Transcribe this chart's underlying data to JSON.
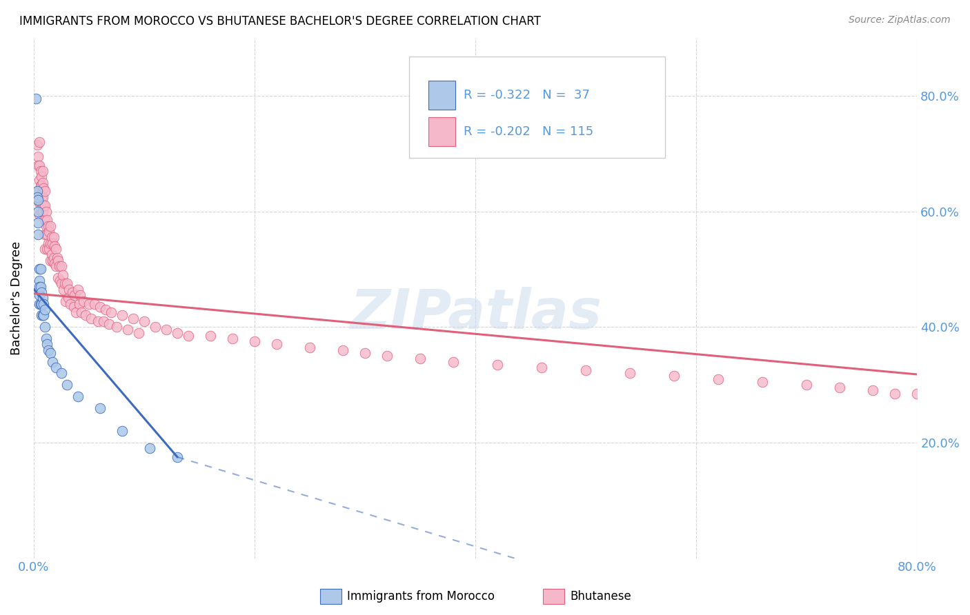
{
  "title": "IMMIGRANTS FROM MOROCCO VS BHUTANESE BACHELOR'S DEGREE CORRELATION CHART",
  "source": "Source: ZipAtlas.com",
  "ylabel": "Bachelor's Degree",
  "xlim": [
    0.0,
    0.8
  ],
  "ylim": [
    0.0,
    0.9
  ],
  "xtick_positions": [
    0.0,
    0.2,
    0.4,
    0.6,
    0.8
  ],
  "ytick_positions": [
    0.2,
    0.4,
    0.6,
    0.8
  ],
  "color_morocco": "#adc8e8",
  "color_bhutanese": "#f5b8cb",
  "line_color_morocco": "#3b6abf",
  "line_color_bhutanese": "#e0607a",
  "watermark": "ZIPatlas",
  "morocco_x": [
    0.002,
    0.003,
    0.003,
    0.004,
    0.004,
    0.004,
    0.004,
    0.005,
    0.005,
    0.005,
    0.005,
    0.005,
    0.006,
    0.006,
    0.006,
    0.007,
    0.007,
    0.007,
    0.008,
    0.008,
    0.009,
    0.009,
    0.01,
    0.01,
    0.011,
    0.012,
    0.013,
    0.015,
    0.017,
    0.02,
    0.025,
    0.03,
    0.04,
    0.06,
    0.08,
    0.105,
    0.13
  ],
  "morocco_y": [
    0.795,
    0.635,
    0.625,
    0.62,
    0.6,
    0.58,
    0.56,
    0.5,
    0.48,
    0.47,
    0.455,
    0.44,
    0.5,
    0.47,
    0.44,
    0.46,
    0.44,
    0.42,
    0.45,
    0.42,
    0.44,
    0.42,
    0.43,
    0.4,
    0.38,
    0.37,
    0.36,
    0.355,
    0.34,
    0.33,
    0.32,
    0.3,
    0.28,
    0.26,
    0.22,
    0.19,
    0.175
  ],
  "bhutanese_x": [
    0.003,
    0.004,
    0.004,
    0.005,
    0.005,
    0.005,
    0.005,
    0.005,
    0.005,
    0.006,
    0.006,
    0.006,
    0.007,
    0.007,
    0.007,
    0.007,
    0.008,
    0.008,
    0.008,
    0.008,
    0.009,
    0.009,
    0.01,
    0.01,
    0.01,
    0.01,
    0.01,
    0.011,
    0.011,
    0.012,
    0.012,
    0.012,
    0.013,
    0.013,
    0.014,
    0.014,
    0.015,
    0.015,
    0.015,
    0.016,
    0.016,
    0.017,
    0.017,
    0.018,
    0.018,
    0.019,
    0.019,
    0.02,
    0.02,
    0.021,
    0.022,
    0.022,
    0.023,
    0.024,
    0.025,
    0.025,
    0.026,
    0.027,
    0.028,
    0.029,
    0.03,
    0.031,
    0.032,
    0.033,
    0.035,
    0.036,
    0.037,
    0.038,
    0.04,
    0.041,
    0.042,
    0.043,
    0.045,
    0.047,
    0.05,
    0.052,
    0.055,
    0.058,
    0.06,
    0.063,
    0.065,
    0.068,
    0.07,
    0.075,
    0.08,
    0.085,
    0.09,
    0.095,
    0.1,
    0.11,
    0.12,
    0.13,
    0.14,
    0.16,
    0.18,
    0.2,
    0.22,
    0.25,
    0.28,
    0.3,
    0.32,
    0.35,
    0.38,
    0.42,
    0.46,
    0.5,
    0.54,
    0.58,
    0.62,
    0.66,
    0.7,
    0.73,
    0.76,
    0.78,
    0.8
  ],
  "bhutanese_y": [
    0.715,
    0.695,
    0.68,
    0.72,
    0.68,
    0.655,
    0.635,
    0.615,
    0.595,
    0.67,
    0.645,
    0.615,
    0.66,
    0.645,
    0.625,
    0.6,
    0.67,
    0.65,
    0.625,
    0.6,
    0.64,
    0.61,
    0.635,
    0.61,
    0.585,
    0.56,
    0.535,
    0.6,
    0.575,
    0.585,
    0.56,
    0.535,
    0.575,
    0.545,
    0.565,
    0.535,
    0.575,
    0.545,
    0.515,
    0.555,
    0.525,
    0.545,
    0.515,
    0.555,
    0.52,
    0.54,
    0.51,
    0.535,
    0.505,
    0.52,
    0.515,
    0.485,
    0.505,
    0.48,
    0.505,
    0.475,
    0.49,
    0.465,
    0.475,
    0.445,
    0.475,
    0.45,
    0.465,
    0.44,
    0.46,
    0.435,
    0.455,
    0.425,
    0.465,
    0.44,
    0.455,
    0.425,
    0.445,
    0.42,
    0.44,
    0.415,
    0.44,
    0.41,
    0.435,
    0.41,
    0.43,
    0.405,
    0.425,
    0.4,
    0.42,
    0.395,
    0.415,
    0.39,
    0.41,
    0.4,
    0.395,
    0.39,
    0.385,
    0.385,
    0.38,
    0.375,
    0.37,
    0.365,
    0.36,
    0.355,
    0.35,
    0.345,
    0.34,
    0.335,
    0.33,
    0.325,
    0.32,
    0.315,
    0.31,
    0.305,
    0.3,
    0.295,
    0.29,
    0.285,
    0.285
  ]
}
